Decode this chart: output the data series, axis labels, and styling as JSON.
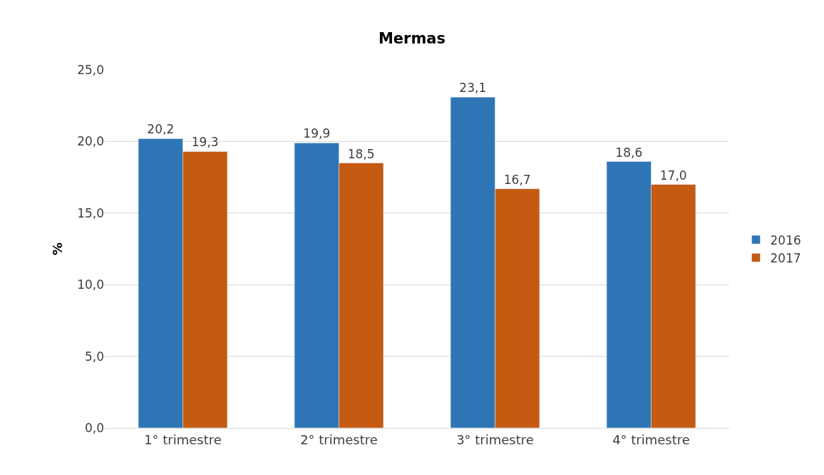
{
  "chart_data": {
    "type": "bar",
    "title": "Mermas",
    "ylabel": "%",
    "categories": [
      "1° trimestre",
      "2° trimestre",
      "3° trimestre",
      "4° trimestre"
    ],
    "series": [
      {
        "name": "2016",
        "color": "#2e75b6",
        "values": [
          20.2,
          19.9,
          23.1,
          18.6
        ],
        "value_labels": [
          "20,2",
          "19,9",
          "23,1",
          "18,6"
        ]
      },
      {
        "name": "2017",
        "color": "#c55a11",
        "values": [
          19.3,
          18.5,
          16.7,
          17.0
        ],
        "value_labels": [
          "19,3",
          "18,5",
          "16,7",
          "17,0"
        ]
      }
    ],
    "ylim": [
      0,
      25
    ],
    "yticks": [
      {
        "value": 0,
        "label": "0,0"
      },
      {
        "value": 5,
        "label": "5,0"
      },
      {
        "value": 10,
        "label": "10,0"
      },
      {
        "value": 15,
        "label": "15,0"
      },
      {
        "value": 20,
        "label": "20,0"
      },
      {
        "value": 25,
        "label": "25,0"
      }
    ],
    "grid": "y",
    "legend": "right"
  }
}
